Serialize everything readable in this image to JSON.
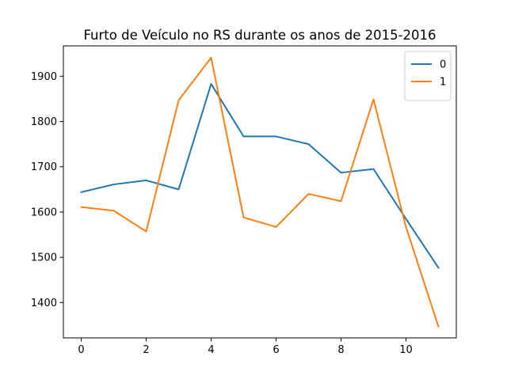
{
  "chart_data": {
    "type": "line",
    "title": "Furto de Veículo no RS durante os anos de 2015-2016",
    "xlabel": "",
    "ylabel": "",
    "x": [
      0,
      1,
      2,
      3,
      4,
      5,
      6,
      7,
      8,
      9,
      10,
      11
    ],
    "xlim": [
      -0.55,
      11.55
    ],
    "ylim": [
      1322,
      1967
    ],
    "x_ticks": [
      "0",
      "2",
      "4",
      "6",
      "8",
      "10"
    ],
    "y_ticks": [
      "1400",
      "1500",
      "1600",
      "1700",
      "1800",
      "1900"
    ],
    "grid": false,
    "legend_position": "top-right",
    "series": [
      {
        "name": "0",
        "color": "#1f77b4",
        "values": [
          1644,
          1661,
          1670,
          1650,
          1883,
          1767,
          1767,
          1750,
          1687,
          1695,
          1585,
          1477
        ]
      },
      {
        "name": "1",
        "color": "#ff7f0e",
        "values": [
          1611,
          1603,
          1557,
          1847,
          1941,
          1588,
          1567,
          1640,
          1624,
          1849,
          1567,
          1347
        ]
      }
    ]
  }
}
